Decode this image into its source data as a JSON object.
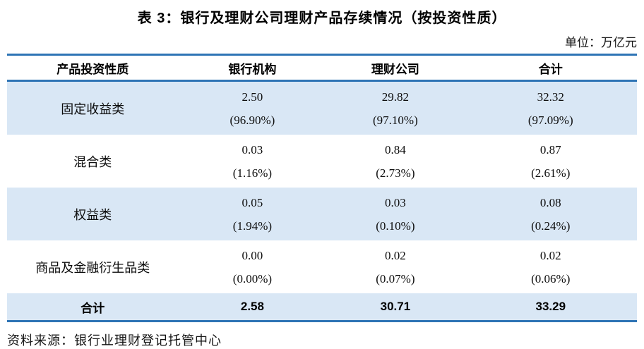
{
  "title": "表 3：银行及理财公司理财产品存续情况（按投资性质）",
  "unit_label": "单位：万亿元",
  "colors": {
    "border_blue": "#2E74B5",
    "row_highlight_blue": "#D9E7F5",
    "text": "#0d0d0d"
  },
  "chart_data": {
    "type": "table",
    "title": "表 3：银行及理财公司理财产品存续情况（按投资性质）",
    "unit": "万亿元",
    "columns": [
      "产品投资性质",
      "银行机构",
      "理财公司",
      "合计"
    ],
    "rows": [
      [
        "固定收益类",
        "2.50 (96.90%)",
        "29.82 (97.10%)",
        "32.32 (97.09%)"
      ],
      [
        "混合类",
        "0.03 (1.16%)",
        "0.84 (2.73%)",
        "0.87 (2.61%)"
      ],
      [
        "权益类",
        "0.05 (1.94%)",
        "0.03 (0.10%)",
        "0.08 (0.24%)"
      ],
      [
        "商品及金融衍生品类",
        "0.00 (0.00%)",
        "0.02 (0.07%)",
        "0.02 (0.06%)"
      ],
      [
        "合计",
        "2.58",
        "30.71",
        "33.29"
      ]
    ]
  },
  "table": {
    "headers": [
      "产品投资性质",
      "银行机构",
      "理财公司",
      "合计"
    ],
    "rows": [
      {
        "label": "固定收益类",
        "bank": {
          "value": "2.50",
          "pct": "(96.90%)"
        },
        "wmc": {
          "value": "29.82",
          "pct": "(97.10%)"
        },
        "total": {
          "value": "32.32",
          "pct": "(97.09%)"
        }
      },
      {
        "label": "混合类",
        "bank": {
          "value": "0.03",
          "pct": "(1.16%)"
        },
        "wmc": {
          "value": "0.84",
          "pct": "(2.73%)"
        },
        "total": {
          "value": "0.87",
          "pct": "(2.61%)"
        }
      },
      {
        "label": "权益类",
        "bank": {
          "value": "0.05",
          "pct": "(1.94%)"
        },
        "wmc": {
          "value": "0.03",
          "pct": "(0.10%)"
        },
        "total": {
          "value": "0.08",
          "pct": "(0.24%)"
        }
      },
      {
        "label": "商品及金融衍生品类",
        "bank": {
          "value": "0.00",
          "pct": "(0.00%)"
        },
        "wmc": {
          "value": "0.02",
          "pct": "(0.07%)"
        },
        "total": {
          "value": "0.02",
          "pct": "(0.06%)"
        }
      }
    ],
    "total_row": {
      "label": "合计",
      "bank": "2.58",
      "wmc": "30.71",
      "total": "33.29"
    }
  },
  "source": "资料来源：银行业理财登记托管中心"
}
